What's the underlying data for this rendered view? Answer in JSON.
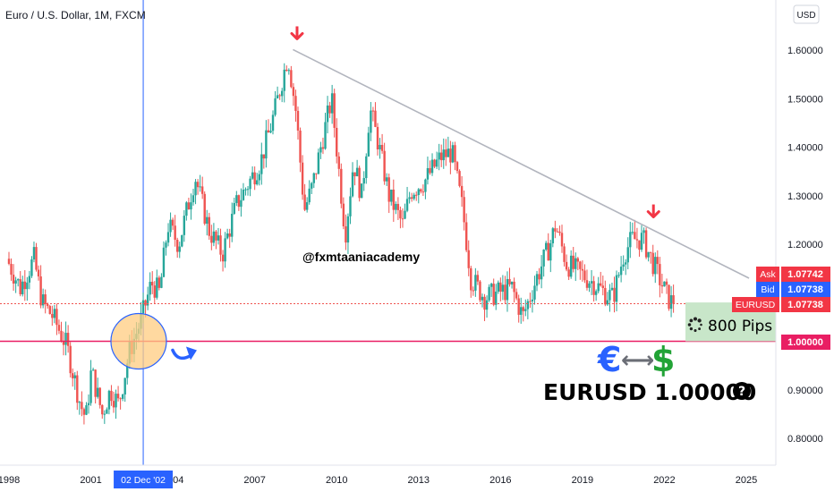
{
  "header": {
    "symbol_title": "Euro / U.S. Dollar, 1M, FXCM",
    "currency_button": "USD"
  },
  "colors": {
    "up": "#26a69a",
    "down": "#ef5350",
    "trendline": "#b2b5be",
    "support_line": "#e91e63",
    "crosshair": "#2962ff",
    "arrow_red": "#f23645",
    "euro_blue": "#2962ff",
    "dollar_green": "#22a336",
    "ask_bg": "#f23645",
    "bid_bg": "#2962ff",
    "pips_bg": "#c8e6c9",
    "circle_fill": "#ffcc80",
    "circle_stroke": "#2962ff"
  },
  "annotations": {
    "watermark": "@fxmtaaniacademy",
    "pips_label": "800 Pips",
    "pips_icon": "loading-dots-icon",
    "euro_symbol": "€",
    "arrow_symbol": "⟷",
    "dollar_symbol": "$",
    "pair_label": "EURUSD 1.00000",
    "question_icon": "?",
    "crosshair_date": "02 Dec '02"
  },
  "price_labels": {
    "ask_label": "Ask",
    "ask_value": "1.07742",
    "bid_label": "Bid",
    "bid_value": "1.07738",
    "symbol_label": "EURUSD",
    "symbol_value": "1.07738",
    "level_value": "1.00000"
  },
  "chart_data": {
    "type": "candlestick",
    "title": "Euro / U.S. Dollar, 1M, FXCM",
    "x_ticks": [
      "1998",
      "2001",
      "2004",
      "2007",
      "2010",
      "2013",
      "2016",
      "2019",
      "2022",
      "2025"
    ],
    "x_tick_values": [
      1998,
      2001,
      2004,
      2007,
      2010,
      2013,
      2016,
      2019,
      2022,
      2025
    ],
    "y_ticks": [
      "1.60000",
      "1.50000",
      "1.40000",
      "1.30000",
      "1.20000",
      "0.90000",
      "0.80000"
    ],
    "y_tick_values": [
      1.6,
      1.5,
      1.4,
      1.3,
      1.2,
      0.9,
      0.8
    ],
    "xlim": [
      1998.0,
      2025.5
    ],
    "ylim": [
      0.74,
      1.68
    ],
    "crosshair_x": 2002.917,
    "trendline": {
      "start": [
        2008.4,
        1.601
      ],
      "end": [
        2025.1,
        1.13
      ]
    },
    "support_level": 1.0,
    "current_price": 1.07738,
    "pips_range": [
      1.0,
      1.08
    ],
    "highlight_circle_center": [
      2002.75,
      1.0
    ],
    "markers": [
      {
        "x": 2008.55,
        "y": 1.601,
        "type": "down-arrow"
      },
      {
        "x": 2021.6,
        "y": 1.234,
        "type": "down-arrow"
      }
    ],
    "path_points": [
      [
        1998.0,
        1.17
      ],
      [
        1998.5,
        1.11
      ],
      [
        1999.0,
        1.17
      ],
      [
        1999.3,
        1.08
      ],
      [
        1999.7,
        1.05
      ],
      [
        2000.2,
        0.99
      ],
      [
        2000.7,
        0.87
      ],
      [
        2000.9,
        0.84
      ],
      [
        2001.1,
        0.94
      ],
      [
        2001.5,
        0.85
      ],
      [
        2001.8,
        0.9
      ],
      [
        2002.1,
        0.87
      ],
      [
        2002.5,
        0.98
      ],
      [
        2002.9,
        1.04
      ],
      [
        2003.3,
        1.12
      ],
      [
        2003.6,
        1.1
      ],
      [
        2003.9,
        1.24
      ],
      [
        2004.3,
        1.2
      ],
      [
        2004.9,
        1.34
      ],
      [
        2005.4,
        1.23
      ],
      [
        2005.9,
        1.18
      ],
      [
        2006.4,
        1.28
      ],
      [
        2006.8,
        1.32
      ],
      [
        2007.3,
        1.37
      ],
      [
        2007.8,
        1.47
      ],
      [
        2008.3,
        1.59
      ],
      [
        2008.6,
        1.47
      ],
      [
        2008.9,
        1.27
      ],
      [
        2009.2,
        1.32
      ],
      [
        2009.5,
        1.4
      ],
      [
        2009.9,
        1.5
      ],
      [
        2010.4,
        1.22
      ],
      [
        2010.7,
        1.37
      ],
      [
        2011.0,
        1.3
      ],
      [
        2011.3,
        1.48
      ],
      [
        2011.6,
        1.41
      ],
      [
        2012.0,
        1.3
      ],
      [
        2012.5,
        1.24
      ],
      [
        2012.8,
        1.31
      ],
      [
        2013.3,
        1.33
      ],
      [
        2013.9,
        1.38
      ],
      [
        2014.3,
        1.39
      ],
      [
        2014.7,
        1.27
      ],
      [
        2015.0,
        1.13
      ],
      [
        2015.5,
        1.09
      ],
      [
        2016.0,
        1.1
      ],
      [
        2016.5,
        1.11
      ],
      [
        2016.9,
        1.05
      ],
      [
        2017.4,
        1.13
      ],
      [
        2017.9,
        1.2
      ],
      [
        2018.1,
        1.24
      ],
      [
        2018.5,
        1.16
      ],
      [
        2019.0,
        1.14
      ],
      [
        2019.5,
        1.12
      ],
      [
        2019.9,
        1.1
      ],
      [
        2020.2,
        1.09
      ],
      [
        2020.6,
        1.18
      ],
      [
        2020.9,
        1.21
      ],
      [
        2021.3,
        1.21
      ],
      [
        2021.6,
        1.17
      ],
      [
        2021.9,
        1.13
      ],
      [
        2022.2,
        1.09
      ],
      [
        2022.4,
        1.077
      ]
    ]
  }
}
